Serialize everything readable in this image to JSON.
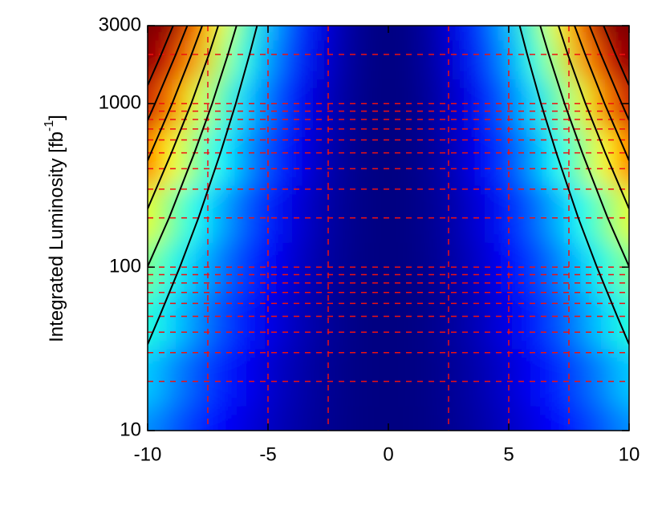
{
  "chart_data": {
    "type": "heatmap",
    "ylabel": {
      "text": "Integrated Luminosity [fb",
      "superscript": "-1",
      "suffix": "]"
    },
    "xlim": [
      -10,
      10
    ],
    "ylim": [
      10,
      3000
    ],
    "log_y": true,
    "xticks": [
      -10,
      -5,
      0,
      5,
      10
    ],
    "yticks": [
      10,
      100,
      1000,
      3000
    ],
    "grid": true,
    "grid_color": "#ee1111",
    "grid_x": [
      -7.5,
      -5,
      -2.5,
      2.5,
      5,
      7.5
    ],
    "grid_y": [
      20,
      30,
      40,
      50,
      60,
      70,
      80,
      90,
      100,
      200,
      300,
      400,
      500,
      600,
      700,
      800,
      900,
      1000,
      2000
    ],
    "colormap": "jet",
    "zlim": [
      0,
      0.8
    ],
    "contour_color": "#000000",
    "contour_levels": [
      0.3,
      0.4,
      0.5,
      0.6,
      0.7,
      0.8
    ],
    "x": [
      -10,
      -9,
      -8,
      -7,
      -6,
      -5,
      -4,
      -3,
      -2,
      -1,
      0,
      1,
      2,
      3,
      4,
      5,
      6,
      7,
      8,
      9,
      10
    ],
    "y": [
      10,
      20,
      50,
      100,
      200,
      500,
      1000,
      2000,
      3000
    ],
    "z": [
      [
        0.214,
        0.173,
        0.137,
        0.105,
        0.077,
        0.054,
        0.034,
        0.019,
        0.009,
        0.002,
        0,
        0.002,
        0.009,
        0.019,
        0.034,
        0.054,
        0.077,
        0.105,
        0.137,
        0.173,
        0.214
      ],
      [
        0.259,
        0.21,
        0.166,
        0.127,
        0.093,
        0.065,
        0.041,
        0.023,
        0.01,
        0.003,
        0,
        0.003,
        0.01,
        0.023,
        0.041,
        0.065,
        0.093,
        0.127,
        0.166,
        0.21,
        0.259
      ],
      [
        0.331,
        0.268,
        0.212,
        0.162,
        0.119,
        0.083,
        0.053,
        0.03,
        0.013,
        0.003,
        0,
        0.003,
        0.013,
        0.03,
        0.053,
        0.083,
        0.119,
        0.162,
        0.212,
        0.268,
        0.331
      ],
      [
        0.399,
        0.323,
        0.255,
        0.196,
        0.144,
        0.1,
        0.064,
        0.036,
        0.016,
        0.004,
        0,
        0.004,
        0.016,
        0.036,
        0.064,
        0.1,
        0.144,
        0.196,
        0.255,
        0.323,
        0.399
      ],
      [
        0.481,
        0.39,
        0.308,
        0.236,
        0.173,
        0.12,
        0.077,
        0.043,
        0.019,
        0.005,
        0,
        0.005,
        0.019,
        0.043,
        0.077,
        0.12,
        0.173,
        0.236,
        0.308,
        0.39,
        0.481
      ],
      [
        0.616,
        0.499,
        0.394,
        0.302,
        0.222,
        0.154,
        0.099,
        0.055,
        0.025,
        0.006,
        0,
        0.006,
        0.025,
        0.055,
        0.099,
        0.154,
        0.222,
        0.302,
        0.394,
        0.499,
        0.616
      ],
      [
        0.743,
        0.602,
        0.476,
        0.364,
        0.267,
        0.186,
        0.119,
        0.067,
        0.03,
        0.007,
        0,
        0.007,
        0.03,
        0.067,
        0.119,
        0.186,
        0.267,
        0.364,
        0.476,
        0.602,
        0.743
      ],
      [
        0.896,
        0.726,
        0.573,
        0.439,
        0.323,
        0.224,
        0.143,
        0.081,
        0.036,
        0.009,
        0,
        0.009,
        0.036,
        0.081,
        0.143,
        0.224,
        0.323,
        0.439,
        0.573,
        0.726,
        0.896
      ],
      [
        1,
        0.81,
        0.64,
        0.49,
        0.36,
        0.25,
        0.16,
        0.09,
        0.04,
        0.01,
        0,
        0.01,
        0.04,
        0.09,
        0.16,
        0.25,
        0.36,
        0.49,
        0.64,
        0.81,
        1
      ]
    ]
  }
}
